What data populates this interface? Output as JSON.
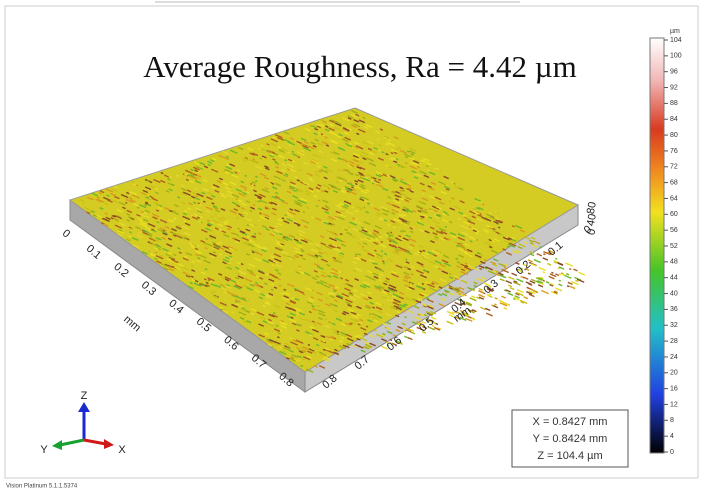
{
  "title": "Average Roughness, Ra = 4.42 µm",
  "x_axis": {
    "ticks": [
      "0",
      "0.1",
      "0.2",
      "0.3",
      "0.4",
      "0.5",
      "0.6",
      "0.7",
      "0.8"
    ],
    "unit": "mm"
  },
  "y_axis": {
    "ticks": [
      "0.8",
      "0.7",
      "0.6",
      "0.5",
      "0.4",
      "0.3",
      "0.2",
      "0.1",
      "0"
    ],
    "unit": "mm"
  },
  "z_axis": {
    "ticks": [
      "0",
      "40",
      "80"
    ]
  },
  "colorbar": {
    "unit": "µm",
    "ticks": [
      104,
      100,
      96,
      92,
      88,
      84,
      80,
      76,
      72,
      68,
      64,
      60,
      56,
      52,
      48,
      44,
      40,
      36,
      32,
      28,
      24,
      20,
      16,
      12,
      8,
      4,
      0
    ]
  },
  "readout": [
    "X = 0.8427 mm",
    "Y = 0.8424 mm",
    "Z = 104.4 µm"
  ],
  "triad": [
    "Z",
    "Y",
    "X"
  ],
  "footer": "Vision Platinum 5.1.1.5374"
}
